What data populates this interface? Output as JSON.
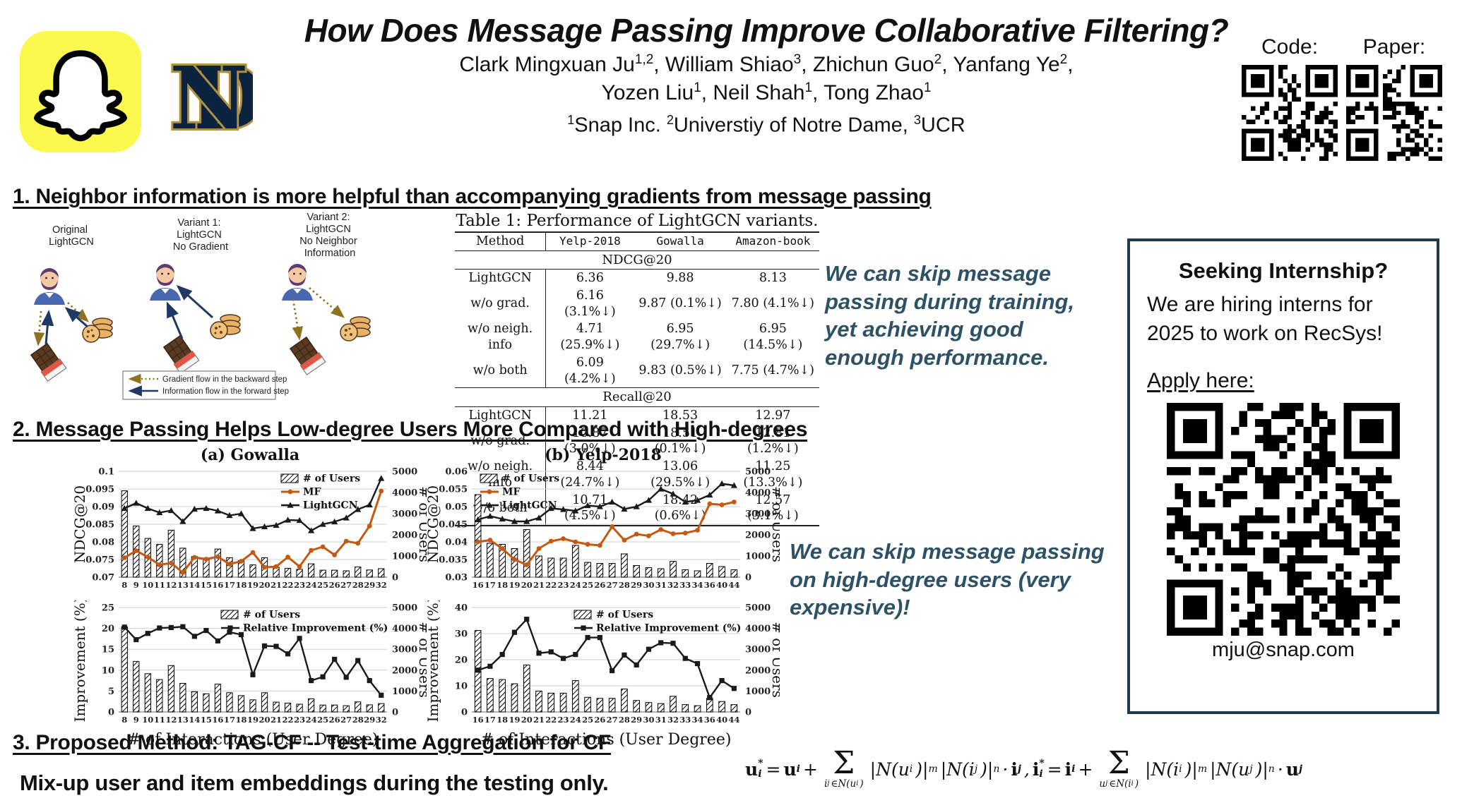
{
  "header": {
    "title": "How Does Message Passing Improve Collaborative Filtering?",
    "authors_line1": [
      {
        "t": "Clark Mingxuan Ju",
        "s": "1,2"
      },
      {
        "t": ", William Shiao",
        "s": "3"
      },
      {
        "t": ", Zhichun Guo",
        "s": "2"
      },
      {
        "t": ", Yanfang Ye",
        "s": "2"
      },
      {
        "t": ","
      }
    ],
    "authors_line2": [
      {
        "t": "Yozen Liu",
        "s": "1"
      },
      {
        "t": ", Neil Shah",
        "s": "1"
      },
      {
        "t": ", Tong Zhao",
        "s": "1"
      }
    ],
    "affiliations": [
      {
        "s": "1",
        "t": "Snap Inc. ",
        "pre": true
      },
      {
        "s": "2",
        "t": "Universtiy of Notre Dame, ",
        "pre": true
      },
      {
        "s": "3",
        "t": "UCR",
        "pre": true
      }
    ],
    "code_label": "Code:",
    "paper_label": "Paper:"
  },
  "icons": {
    "snapchat": "snapchat-ghost-logo",
    "notre_dame": "notre-dame-nd-monogram",
    "qr": "qr-code",
    "user": "user-avatar",
    "cookies": "cookies-item",
    "chocolate": "chocolate-bar-item"
  },
  "sections": {
    "s1": "1. Neighbor information is more helpful than accompanying gradients from message passing",
    "s2": "2. Message Passing Helps Low-degree Users More Compared with High-degrees",
    "s3": "3. Proposed Method: TAG-CF -- Test-time Aggregation for CF",
    "s3_sub": "Mix-up user  and item embeddings during the testing only."
  },
  "diagram": {
    "variants": [
      {
        "lines": [
          "Original",
          "LightGCN"
        ]
      },
      {
        "lines": [
          "Variant 1:",
          "LightGCN",
          "No Gradient"
        ]
      },
      {
        "lines": [
          "Variant 2:",
          "LightGCN",
          "No Neighbor",
          "Information"
        ]
      }
    ],
    "legend": [
      "Gradient flow in the backward step",
      "Information flow in the forward step"
    ],
    "colors": {
      "gradient_arrow": "#8B7320",
      "information_arrow": "#1F3864"
    }
  },
  "table": {
    "title": "Table 1: Performance of LightGCN variants.",
    "columns": [
      "Method",
      "Yelp-2018",
      "Gowalla",
      "Amazon-book"
    ],
    "sections": [
      {
        "name": "NDCG@20",
        "rows": [
          [
            "LightGCN",
            "6.36",
            "9.88",
            "8.13"
          ],
          [
            "w/o grad.",
            "6.16  (3.1%↓)",
            "9.87  (0.1%↓)",
            "7.80  (4.1%↓)"
          ],
          [
            "w/o neigh. info",
            "4.71 (25.9%↓)",
            "6.95 (29.7%↓)",
            "6.95 (14.5%↓)"
          ],
          [
            "w/o both",
            "6.09  (4.2%↓)",
            "9.83  (0.5%↓)",
            "7.75  (4.7%↓)"
          ]
        ]
      },
      {
        "name": "Recall@20",
        "rows": [
          [
            "LightGCN",
            "11.21",
            "18.53",
            "12.97"
          ],
          [
            "w/o grad.",
            "10.87  (3.0%↓)",
            "18.51  (0.1%↓)",
            "12.81  (1.2%↓)"
          ],
          [
            "w/o neigh. info",
            "8.44 (24.7%↓)",
            "13.06 (29.5%↓)",
            "11.25 (13.3%↓)"
          ],
          [
            "w/o both",
            "10.71  (4.5%↓)",
            "18.42  (0.6%↓)",
            "12.57  (3.1%↓)"
          ]
        ]
      }
    ]
  },
  "callouts": {
    "c1": "We can skip message passing during training, yet achieving good enough performance.",
    "c2": "We can skip message passing on high-degree users (very expensive)!",
    "color": "#2D5166"
  },
  "internship": {
    "title": "Seeking Internship?",
    "body": "We are hiring interns for 2025 to work on RecSys!",
    "apply": "Apply here:",
    "email": "mju@snap.com"
  },
  "formula": {
    "tokens": [
      {
        "v": "u",
        "b": 1,
        "sup": "*",
        "sub": "i"
      },
      {
        "v": " = "
      },
      {
        "v": "u",
        "b": 1,
        "sub": "i"
      },
      {
        "v": " + "
      },
      {
        "sum": [
          {
            "v": "i",
            "sub": "j"
          },
          {
            "v": "∈N(u",
            "sub": "i"
          },
          {
            "v": ")"
          }
        ]
      },
      {
        "v": "|N(u",
        "sub": "i"
      },
      {
        "v": ")|",
        "sup": "m"
      },
      {
        "v": "|N(i",
        "sub": "j"
      },
      {
        "v": ")|",
        "sup": "n"
      },
      {
        "v": " · "
      },
      {
        "v": "i",
        "b": 1,
        "sub": "j"
      },
      {
        "v": ", "
      },
      {
        "v": "i",
        "b": 1,
        "sup": "*",
        "sub": "i"
      },
      {
        "v": " = "
      },
      {
        "v": "i",
        "b": 1,
        "sub": "i"
      },
      {
        "v": " + "
      },
      {
        "sum": [
          {
            "v": "u",
            "sub": "j"
          },
          {
            "v": "∈N(i",
            "sub": "i"
          },
          {
            "v": ")"
          }
        ]
      },
      {
        "v": "|N(i",
        "sub": "i"
      },
      {
        "v": ")|",
        "sup": "m"
      },
      {
        "v": "|N(u",
        "sub": "j"
      },
      {
        "v": ")|",
        "sup": "n"
      },
      {
        "v": " · "
      },
      {
        "v": "u",
        "b": 1,
        "sub": "j"
      }
    ]
  },
  "chart_data": [
    {
      "type": "bar+line",
      "title": "(a) Gowalla",
      "xlabel": "# of Interactions (User Degree)",
      "right_ylabel": "# of Users",
      "users_label": "# of Users",
      "categories": [
        "8",
        "9",
        "10",
        "11",
        "12",
        "13",
        "14",
        "15",
        "16",
        "17",
        "18",
        "19",
        "20",
        "21",
        "22",
        "23",
        "24",
        "25",
        "26",
        "27",
        "28",
        "29",
        "32"
      ],
      "users": [
        4080,
        2420,
        1830,
        1550,
        2220,
        1370,
        970,
        870,
        1330,
        920,
        780,
        580,
        920,
        470,
        420,
        370,
        630,
        330,
        330,
        300,
        480,
        340,
        400
      ],
      "right_ylim": [
        0,
        5000
      ],
      "right_ticks": [
        0,
        1000,
        2000,
        3000,
        4000,
        5000
      ],
      "top": {
        "ylabel": "NDCG@20",
        "ylim": [
          0.07,
          0.1
        ],
        "ticks": [
          0.07,
          0.075,
          0.08,
          0.085,
          0.09,
          0.095,
          0.1
        ],
        "legend": "right",
        "series": [
          {
            "name": "MF",
            "marker": "circle",
            "color": "#C45911",
            "values": [
              0.0755,
              0.0775,
              0.0757,
              0.0735,
              0.074,
              0.0713,
              0.0756,
              0.0751,
              0.0758,
              0.0737,
              0.0745,
              0.077,
              0.0728,
              0.073,
              0.0757,
              0.073,
              0.0776,
              0.0786,
              0.0763,
              0.0802,
              0.0796,
              0.0845,
              0.0944
            ]
          },
          {
            "name": "LightGCN",
            "marker": "triangle",
            "color": "#1A1A1A",
            "values": [
              0.0895,
              0.091,
              0.0895,
              0.0883,
              0.0889,
              0.0858,
              0.0893,
              0.0895,
              0.0888,
              0.0875,
              0.088,
              0.0838,
              0.0843,
              0.0847,
              0.0862,
              0.0861,
              0.0832,
              0.085,
              0.0857,
              0.0868,
              0.0892,
              0.0905,
              0.098
            ]
          }
        ]
      },
      "bottom": {
        "ylabel": "Improvement (%)",
        "ylim": [
          0,
          25
        ],
        "ticks": [
          0,
          5,
          10,
          15,
          20,
          25
        ],
        "legend": "right",
        "series": [
          {
            "name": "Relative Improvement (%)",
            "marker": "square",
            "color": "#1A1A1A",
            "values": [
              20.3,
              17.3,
              18.8,
              20.1,
              20.2,
              20.4,
              18.1,
              19.5,
              17,
              19.1,
              18.5,
              8.9,
              15.8,
              15.7,
              13.9,
              17.6,
              7.5,
              8.4,
              12.6,
              8.3,
              12.3,
              7.5,
              4
            ]
          }
        ]
      }
    },
    {
      "type": "bar+line",
      "title": "(b) Yelp-2018",
      "xlabel": "# of Interactions (User Degree)",
      "right_ylabel": "# of Users",
      "users_label": "# of Users",
      "categories": [
        "16",
        "17",
        "18",
        "19",
        "20",
        "21",
        "22",
        "23",
        "24",
        "25",
        "26",
        "27",
        "28",
        "29",
        "30",
        "31",
        "32",
        "33",
        "34",
        "36",
        "40",
        "44"
      ],
      "users": [
        3900,
        1600,
        1550,
        1350,
        2250,
        1000,
        900,
        900,
        1500,
        700,
        650,
        650,
        1100,
        550,
        450,
        400,
        750,
        350,
        300,
        650,
        500,
        350
      ],
      "right_ylim": [
        0,
        5000
      ],
      "right_ticks": [
        0,
        1000,
        2000,
        3000,
        4000,
        5000
      ],
      "top": {
        "ylabel": "NDCG@20",
        "ylim": [
          0.03,
          0.06
        ],
        "ticks": [
          0.03,
          0.035,
          0.04,
          0.045,
          0.05,
          0.055,
          0.06
        ],
        "legend": "left",
        "series": [
          {
            "name": "MF",
            "marker": "circle",
            "color": "#C45911",
            "values": [
              0.04,
              0.0405,
              0.0381,
              0.035,
              0.0335,
              0.0381,
              0.0402,
              0.0409,
              0.04,
              0.0393,
              0.039,
              0.0443,
              0.0405,
              0.0422,
              0.0417,
              0.0435,
              0.0423,
              0.0425,
              0.0433,
              0.0508,
              0.0505,
              0.0513
            ]
          },
          {
            "name": "LightGCN",
            "marker": "triangle",
            "color": "#1A1A1A",
            "values": [
              0.0463,
              0.0473,
              0.0465,
              0.0458,
              0.0458,
              0.0468,
              0.0495,
              0.0492,
              0.0488,
              0.0503,
              0.05,
              0.0513,
              0.0493,
              0.05,
              0.0518,
              0.055,
              0.0536,
              0.0513,
              0.0518,
              0.0533,
              0.0565,
              0.056
            ]
          }
        ]
      },
      "bottom": {
        "ylabel": "Improvement (%)",
        "ylim": [
          0,
          40
        ],
        "ticks": [
          0,
          10,
          20,
          30,
          40
        ],
        "legend": "right",
        "series": [
          {
            "name": "Relative Improvement (%)",
            "marker": "square",
            "color": "#1A1A1A",
            "values": [
              16,
              17.5,
              22,
              30.5,
              35.5,
              22.5,
              23,
              20.5,
              22,
              28.5,
              28.5,
              15.8,
              21.8,
              18,
              24,
              26.5,
              26.3,
              20.5,
              18.5,
              5.5,
              12,
              9
            ]
          }
        ]
      }
    }
  ]
}
